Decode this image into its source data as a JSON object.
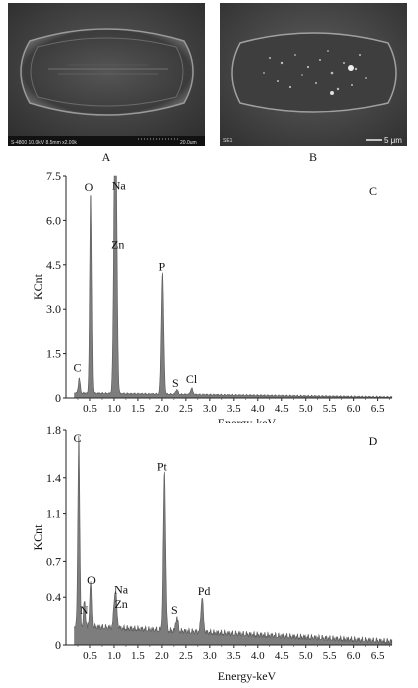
{
  "figure": {
    "panel_a": {
      "caption": "A",
      "info_bar": "S-4800 10.0kV 8.5mm x2.00k",
      "scale_text": "20.0um",
      "image_name": "sem-micrograph-elongated-pit"
    },
    "panel_b": {
      "caption": "B",
      "detector": "SE1",
      "scale_text": "5 μm",
      "image_name": "sem-micrograph-pit-with-particles"
    }
  },
  "chart_data": [
    {
      "type": "area",
      "panel_label": "C",
      "ylabel": "KCnt",
      "xlabel": "Energy-keV",
      "xlim": [
        0,
        6.8
      ],
      "ylim": [
        0,
        7.5
      ],
      "xticks": [
        "0.5",
        "1.0",
        "1.5",
        "2.0",
        "2.5",
        "3.0",
        "3.5",
        "4.0",
        "4.5",
        "5.0",
        "5.5",
        "6.0",
        "6.5"
      ],
      "xtick_values": [
        0.5,
        1.0,
        1.5,
        2.0,
        2.5,
        3.0,
        3.5,
        4.0,
        4.5,
        5.0,
        5.5,
        6.0,
        6.5
      ],
      "yticks": [
        "0",
        "1.5",
        "3.0",
        "4.5",
        "6.0",
        "7.5"
      ],
      "ytick_values": [
        0,
        1.5,
        3.0,
        4.5,
        6.0,
        7.5
      ],
      "baseline": 0.15,
      "peaks": [
        {
          "label": "C",
          "x": 0.28,
          "y": 0.6
        },
        {
          "label": "O",
          "x": 0.52,
          "y": 6.9
        },
        {
          "label": "Na",
          "x": 1.04,
          "y": 7.1
        },
        {
          "label": "Zn",
          "x": 1.01,
          "y": 5.6
        },
        {
          "label": "P",
          "x": 2.01,
          "y": 4.2
        },
        {
          "label": "S",
          "x": 2.31,
          "y": 0.25
        },
        {
          "label": "Cl",
          "x": 2.62,
          "y": 0.3
        }
      ],
      "labels": [
        {
          "text": "C",
          "x": 0.24,
          "y": 0.9
        },
        {
          "text": "O",
          "x": 0.48,
          "y": 7.0
        },
        {
          "text": "Na",
          "x": 1.1,
          "y": 7.05
        },
        {
          "text": "Zn",
          "x": 1.08,
          "y": 5.05
        },
        {
          "text": "P",
          "x": 2.0,
          "y": 4.3
        },
        {
          "text": "S",
          "x": 2.28,
          "y": 0.38
        },
        {
          "text": "Cl",
          "x": 2.62,
          "y": 0.5
        }
      ]
    },
    {
      "type": "area",
      "panel_label": "D",
      "ylabel": "KCnt",
      "xlabel": "Energy-keV",
      "xlim": [
        0,
        6.8
      ],
      "ylim": [
        0,
        1.8
      ],
      "xticks": [
        "0.5",
        "1.0",
        "1.5",
        "2.0",
        "2.5",
        "3.0",
        "3.5",
        "4.0",
        "4.5",
        "5.0",
        "5.5",
        "6.0",
        "6.5"
      ],
      "xtick_values": [
        0.5,
        1.0,
        1.5,
        2.0,
        2.5,
        3.0,
        3.5,
        4.0,
        4.5,
        5.0,
        5.5,
        6.0,
        6.5
      ],
      "yticks": [
        "0",
        "0.4",
        "0.7",
        "1.1",
        "1.4",
        "1.8"
      ],
      "ytick_values": [
        0,
        0.4,
        0.7,
        1.1,
        1.4,
        1.8
      ],
      "baseline": 0.14,
      "peaks": [
        {
          "label": "C",
          "x": 0.27,
          "y": 1.7
        },
        {
          "label": "O",
          "x": 0.52,
          "y": 0.46
        },
        {
          "label": "N",
          "x": 0.39,
          "y": 0.3
        },
        {
          "label": "Na",
          "x": 1.04,
          "y": 0.28
        },
        {
          "label": "Zn",
          "x": 1.01,
          "y": 0.26
        },
        {
          "label": "Pt",
          "x": 2.05,
          "y": 1.4
        },
        {
          "label": "S",
          "x": 2.31,
          "y": 0.2
        },
        {
          "label": "Pd",
          "x": 2.84,
          "y": 0.38
        }
      ],
      "labels": [
        {
          "text": "C",
          "x": 0.24,
          "y": 1.7
        },
        {
          "text": "O",
          "x": 0.53,
          "y": 0.51
        },
        {
          "text": "N",
          "x": 0.38,
          "y": 0.26
        },
        {
          "text": "Na",
          "x": 1.15,
          "y": 0.43
        },
        {
          "text": "Zn",
          "x": 1.15,
          "y": 0.31
        },
        {
          "text": "Pt",
          "x": 2.0,
          "y": 1.46
        },
        {
          "text": "S",
          "x": 2.26,
          "y": 0.26
        },
        {
          "text": "Pd",
          "x": 2.88,
          "y": 0.42
        }
      ]
    }
  ]
}
